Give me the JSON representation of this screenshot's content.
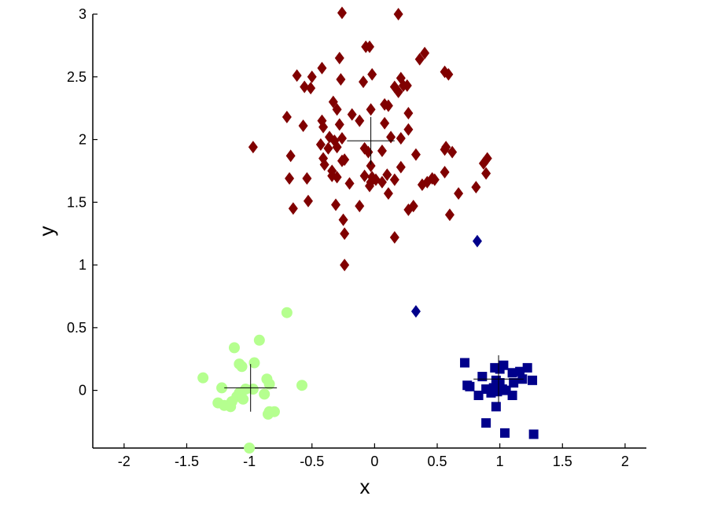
{
  "chart_data": {
    "type": "scatter",
    "title": "",
    "xlabel": "x",
    "ylabel": "y",
    "xlim": [
      -2.25,
      2.17
    ],
    "ylim": [
      -0.46,
      3.0
    ],
    "xticks": [
      "-2",
      "-1.5",
      "-1",
      "-0.5",
      "0",
      "0.5",
      "1",
      "1.5",
      "2"
    ],
    "xtick_values": [
      -2,
      -1.5,
      -1,
      -0.5,
      0,
      0.5,
      1,
      1.5,
      2
    ],
    "yticks": [
      "0",
      "0.5",
      "1",
      "1.5",
      "2",
      "2.5",
      "3"
    ],
    "ytick_values": [
      0,
      0.5,
      1,
      1.5,
      2,
      2.5,
      3
    ],
    "grid": false,
    "legend": "none",
    "series": [
      {
        "marker": "diamond",
        "color": "#800000",
        "points": [
          [
            -0.26,
            3.01
          ],
          [
            0.19,
            3.0
          ],
          [
            -0.07,
            2.74
          ],
          [
            -0.04,
            2.74
          ],
          [
            0.4,
            2.69
          ],
          [
            0.36,
            2.64
          ],
          [
            -0.28,
            2.65
          ],
          [
            -0.42,
            2.57
          ],
          [
            -0.62,
            2.51
          ],
          [
            0.56,
            2.54
          ],
          [
            0.59,
            2.52
          ],
          [
            -0.02,
            2.52
          ],
          [
            -0.5,
            2.5
          ],
          [
            0.21,
            2.49
          ],
          [
            -0.27,
            2.48
          ],
          [
            -0.09,
            2.46
          ],
          [
            -0.56,
            2.42
          ],
          [
            -0.51,
            2.41
          ],
          [
            0.26,
            2.43
          ],
          [
            0.23,
            2.43
          ],
          [
            0.16,
            2.42
          ],
          [
            0.19,
            2.38
          ],
          [
            -0.33,
            2.3
          ],
          [
            0.11,
            2.27
          ],
          [
            -0.3,
            2.24
          ],
          [
            -0.03,
            2.24
          ],
          [
            0.08,
            2.28
          ],
          [
            0.27,
            2.21
          ],
          [
            -0.18,
            2.2
          ],
          [
            -0.7,
            2.18
          ],
          [
            -0.12,
            2.15
          ],
          [
            -0.42,
            2.15
          ],
          [
            -0.28,
            2.12
          ],
          [
            0.08,
            2.13
          ],
          [
            -0.57,
            2.11
          ],
          [
            -0.41,
            2.1
          ],
          [
            0.27,
            2.08
          ],
          [
            0.13,
            2.02
          ],
          [
            -0.36,
            2.02
          ],
          [
            -0.26,
            2.01
          ],
          [
            -0.32,
            1.99
          ],
          [
            0.21,
            2.01
          ],
          [
            -0.43,
            1.96
          ],
          [
            -0.37,
            1.93
          ],
          [
            -0.3,
            1.94
          ],
          [
            -0.97,
            1.94
          ],
          [
            0.57,
            1.94
          ],
          [
            -0.08,
            1.93
          ],
          [
            0.56,
            1.92
          ],
          [
            0.62,
            1.9
          ],
          [
            -0.05,
            1.9
          ],
          [
            0.06,
            1.91
          ],
          [
            -0.41,
            1.85
          ],
          [
            0.33,
            1.88
          ],
          [
            -0.67,
            1.87
          ],
          [
            0.9,
            1.85
          ],
          [
            -0.26,
            1.83
          ],
          [
            -0.24,
            1.84
          ],
          [
            0.87,
            1.81
          ],
          [
            -0.4,
            1.8
          ],
          [
            -0.03,
            1.79
          ],
          [
            0.21,
            1.78
          ],
          [
            -0.34,
            1.75
          ],
          [
            0.56,
            1.74
          ],
          [
            0.89,
            1.73
          ],
          [
            -0.08,
            1.71
          ],
          [
            0.1,
            1.72
          ],
          [
            -0.34,
            1.71
          ],
          [
            -0.02,
            1.7
          ],
          [
            -0.3,
            1.7
          ],
          [
            -0.54,
            1.69
          ],
          [
            -0.68,
            1.69
          ],
          [
            0.16,
            1.68
          ],
          [
            0.01,
            1.68
          ],
          [
            0.06,
            1.66
          ],
          [
            0.46,
            1.69
          ],
          [
            0.48,
            1.68
          ],
          [
            -0.03,
            1.66
          ],
          [
            0.42,
            1.66
          ],
          [
            -0.2,
            1.65
          ],
          [
            0.38,
            1.64
          ],
          [
            -0.04,
            1.63
          ],
          [
            0.81,
            1.62
          ],
          [
            0.67,
            1.57
          ],
          [
            0.11,
            1.57
          ],
          [
            -0.53,
            1.51
          ],
          [
            -0.31,
            1.48
          ],
          [
            0.31,
            1.47
          ],
          [
            -0.12,
            1.47
          ],
          [
            0.27,
            1.44
          ],
          [
            -0.65,
            1.45
          ],
          [
            0.6,
            1.4
          ],
          [
            -0.25,
            1.36
          ],
          [
            -0.24,
            1.25
          ],
          [
            0.16,
            1.22
          ],
          [
            -0.24,
            1.0
          ]
        ]
      },
      {
        "marker": "diamond",
        "color": "#00008b",
        "points": [
          [
            0.82,
            1.19
          ],
          [
            0.33,
            0.63
          ]
        ]
      },
      {
        "marker": "square",
        "color": "#00008b",
        "points": [
          [
            0.72,
            0.22
          ],
          [
            1.03,
            0.2
          ],
          [
            0.96,
            0.18
          ],
          [
            1.22,
            0.18
          ],
          [
            1.0,
            0.17
          ],
          [
            1.1,
            0.14
          ],
          [
            1.16,
            0.15
          ],
          [
            0.86,
            0.11
          ],
          [
            1.18,
            0.09
          ],
          [
            0.97,
            0.08
          ],
          [
            1.26,
            0.08
          ],
          [
            1.11,
            0.06
          ],
          [
            1.0,
            0.06
          ],
          [
            0.74,
            0.04
          ],
          [
            0.76,
            0.03
          ],
          [
            0.89,
            0.01
          ],
          [
            0.95,
            0.02
          ],
          [
            1.02,
            0.01
          ],
          [
            0.98,
            -0.01
          ],
          [
            0.93,
            -0.02
          ],
          [
            1.05,
            0.0
          ],
          [
            0.83,
            -0.04
          ],
          [
            1.1,
            -0.04
          ],
          [
            0.97,
            -0.13
          ],
          [
            0.89,
            -0.26
          ],
          [
            1.04,
            -0.34
          ],
          [
            1.27,
            -0.35
          ]
        ]
      },
      {
        "marker": "circle",
        "color": "#b5ff8f",
        "points": [
          [
            -0.7,
            0.62
          ],
          [
            -0.92,
            0.4
          ],
          [
            -1.12,
            0.34
          ],
          [
            -1.08,
            0.21
          ],
          [
            -0.96,
            0.22
          ],
          [
            -1.06,
            0.19
          ],
          [
            -1.37,
            0.1
          ],
          [
            -0.86,
            0.09
          ],
          [
            -0.84,
            0.05
          ],
          [
            -0.58,
            0.04
          ],
          [
            -1.22,
            0.02
          ],
          [
            -1.03,
            0.01
          ],
          [
            -0.97,
            0.01
          ],
          [
            -1.08,
            -0.02
          ],
          [
            -0.88,
            -0.03
          ],
          [
            -1.1,
            -0.05
          ],
          [
            -1.05,
            -0.07
          ],
          [
            -1.14,
            -0.09
          ],
          [
            -1.25,
            -0.1
          ],
          [
            -1.2,
            -0.12
          ],
          [
            -1.15,
            -0.13
          ],
          [
            -0.84,
            -0.17
          ],
          [
            -0.8,
            -0.17
          ],
          [
            -0.85,
            -0.19
          ],
          [
            -1.0,
            -0.46
          ]
        ]
      }
    ],
    "centroids": [
      {
        "x": -0.03,
        "y": 1.99,
        "hw": 0.19,
        "hh": 0.19
      },
      {
        "x": 0.99,
        "y": 0.09,
        "hw": 0.2,
        "hh": 0.19
      },
      {
        "x": -0.99,
        "y": 0.02,
        "hw": 0.21,
        "hh": 0.19
      }
    ]
  }
}
